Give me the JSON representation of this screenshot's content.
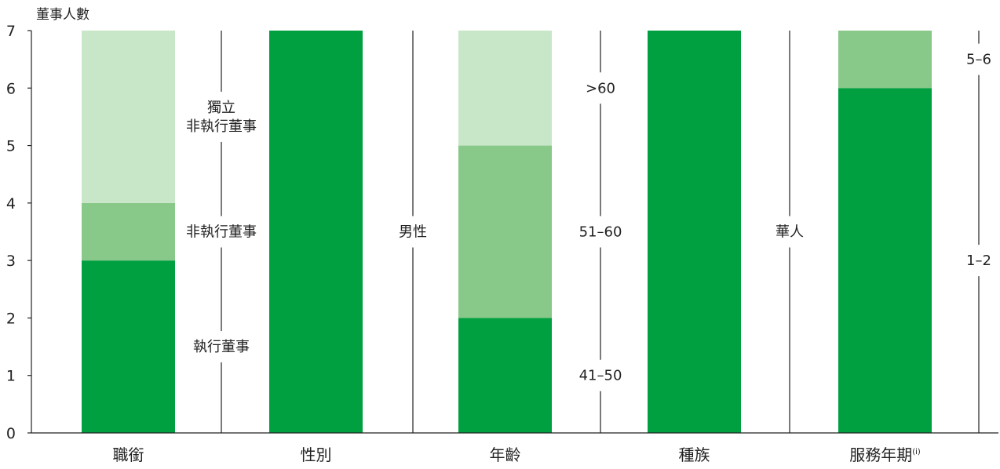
{
  "chart_data": {
    "type": "bar",
    "stacked": true,
    "ylabel": "董事人數",
    "ylim": [
      0,
      7
    ],
    "yticks": [
      0,
      1,
      2,
      3,
      4,
      5,
      6,
      7
    ],
    "grid": false,
    "legend": "none",
    "colors": {
      "dark": "#00a040",
      "medium": "#88c888",
      "light": "#c8e6c8",
      "axis": "#222222"
    },
    "groups": [
      {
        "category": "職銜",
        "segments": [
          {
            "label": "執行董事",
            "value": 3,
            "color": "dark"
          },
          {
            "label": "非執行董事",
            "value": 1,
            "color": "medium"
          },
          {
            "label": "獨立\n非執行董事",
            "value": 3,
            "color": "light"
          }
        ]
      },
      {
        "category": "性別",
        "segments": [
          {
            "label": "男性",
            "value": 7,
            "color": "dark"
          }
        ]
      },
      {
        "category": "年齡",
        "segments": [
          {
            "label": "41–50",
            "value": 2,
            "color": "dark"
          },
          {
            "label": "51–60",
            "value": 3,
            "color": "medium"
          },
          {
            "label": ">60",
            "value": 2,
            "color": "light"
          }
        ]
      },
      {
        "category": "種族",
        "segments": [
          {
            "label": "華人",
            "value": 7,
            "color": "dark"
          }
        ]
      },
      {
        "category": "服務年期",
        "category_note": "(i)",
        "segments": [
          {
            "label": "1–2",
            "value": 6,
            "color": "dark"
          },
          {
            "label": "5–6",
            "value": 1,
            "color": "medium"
          }
        ]
      }
    ]
  }
}
